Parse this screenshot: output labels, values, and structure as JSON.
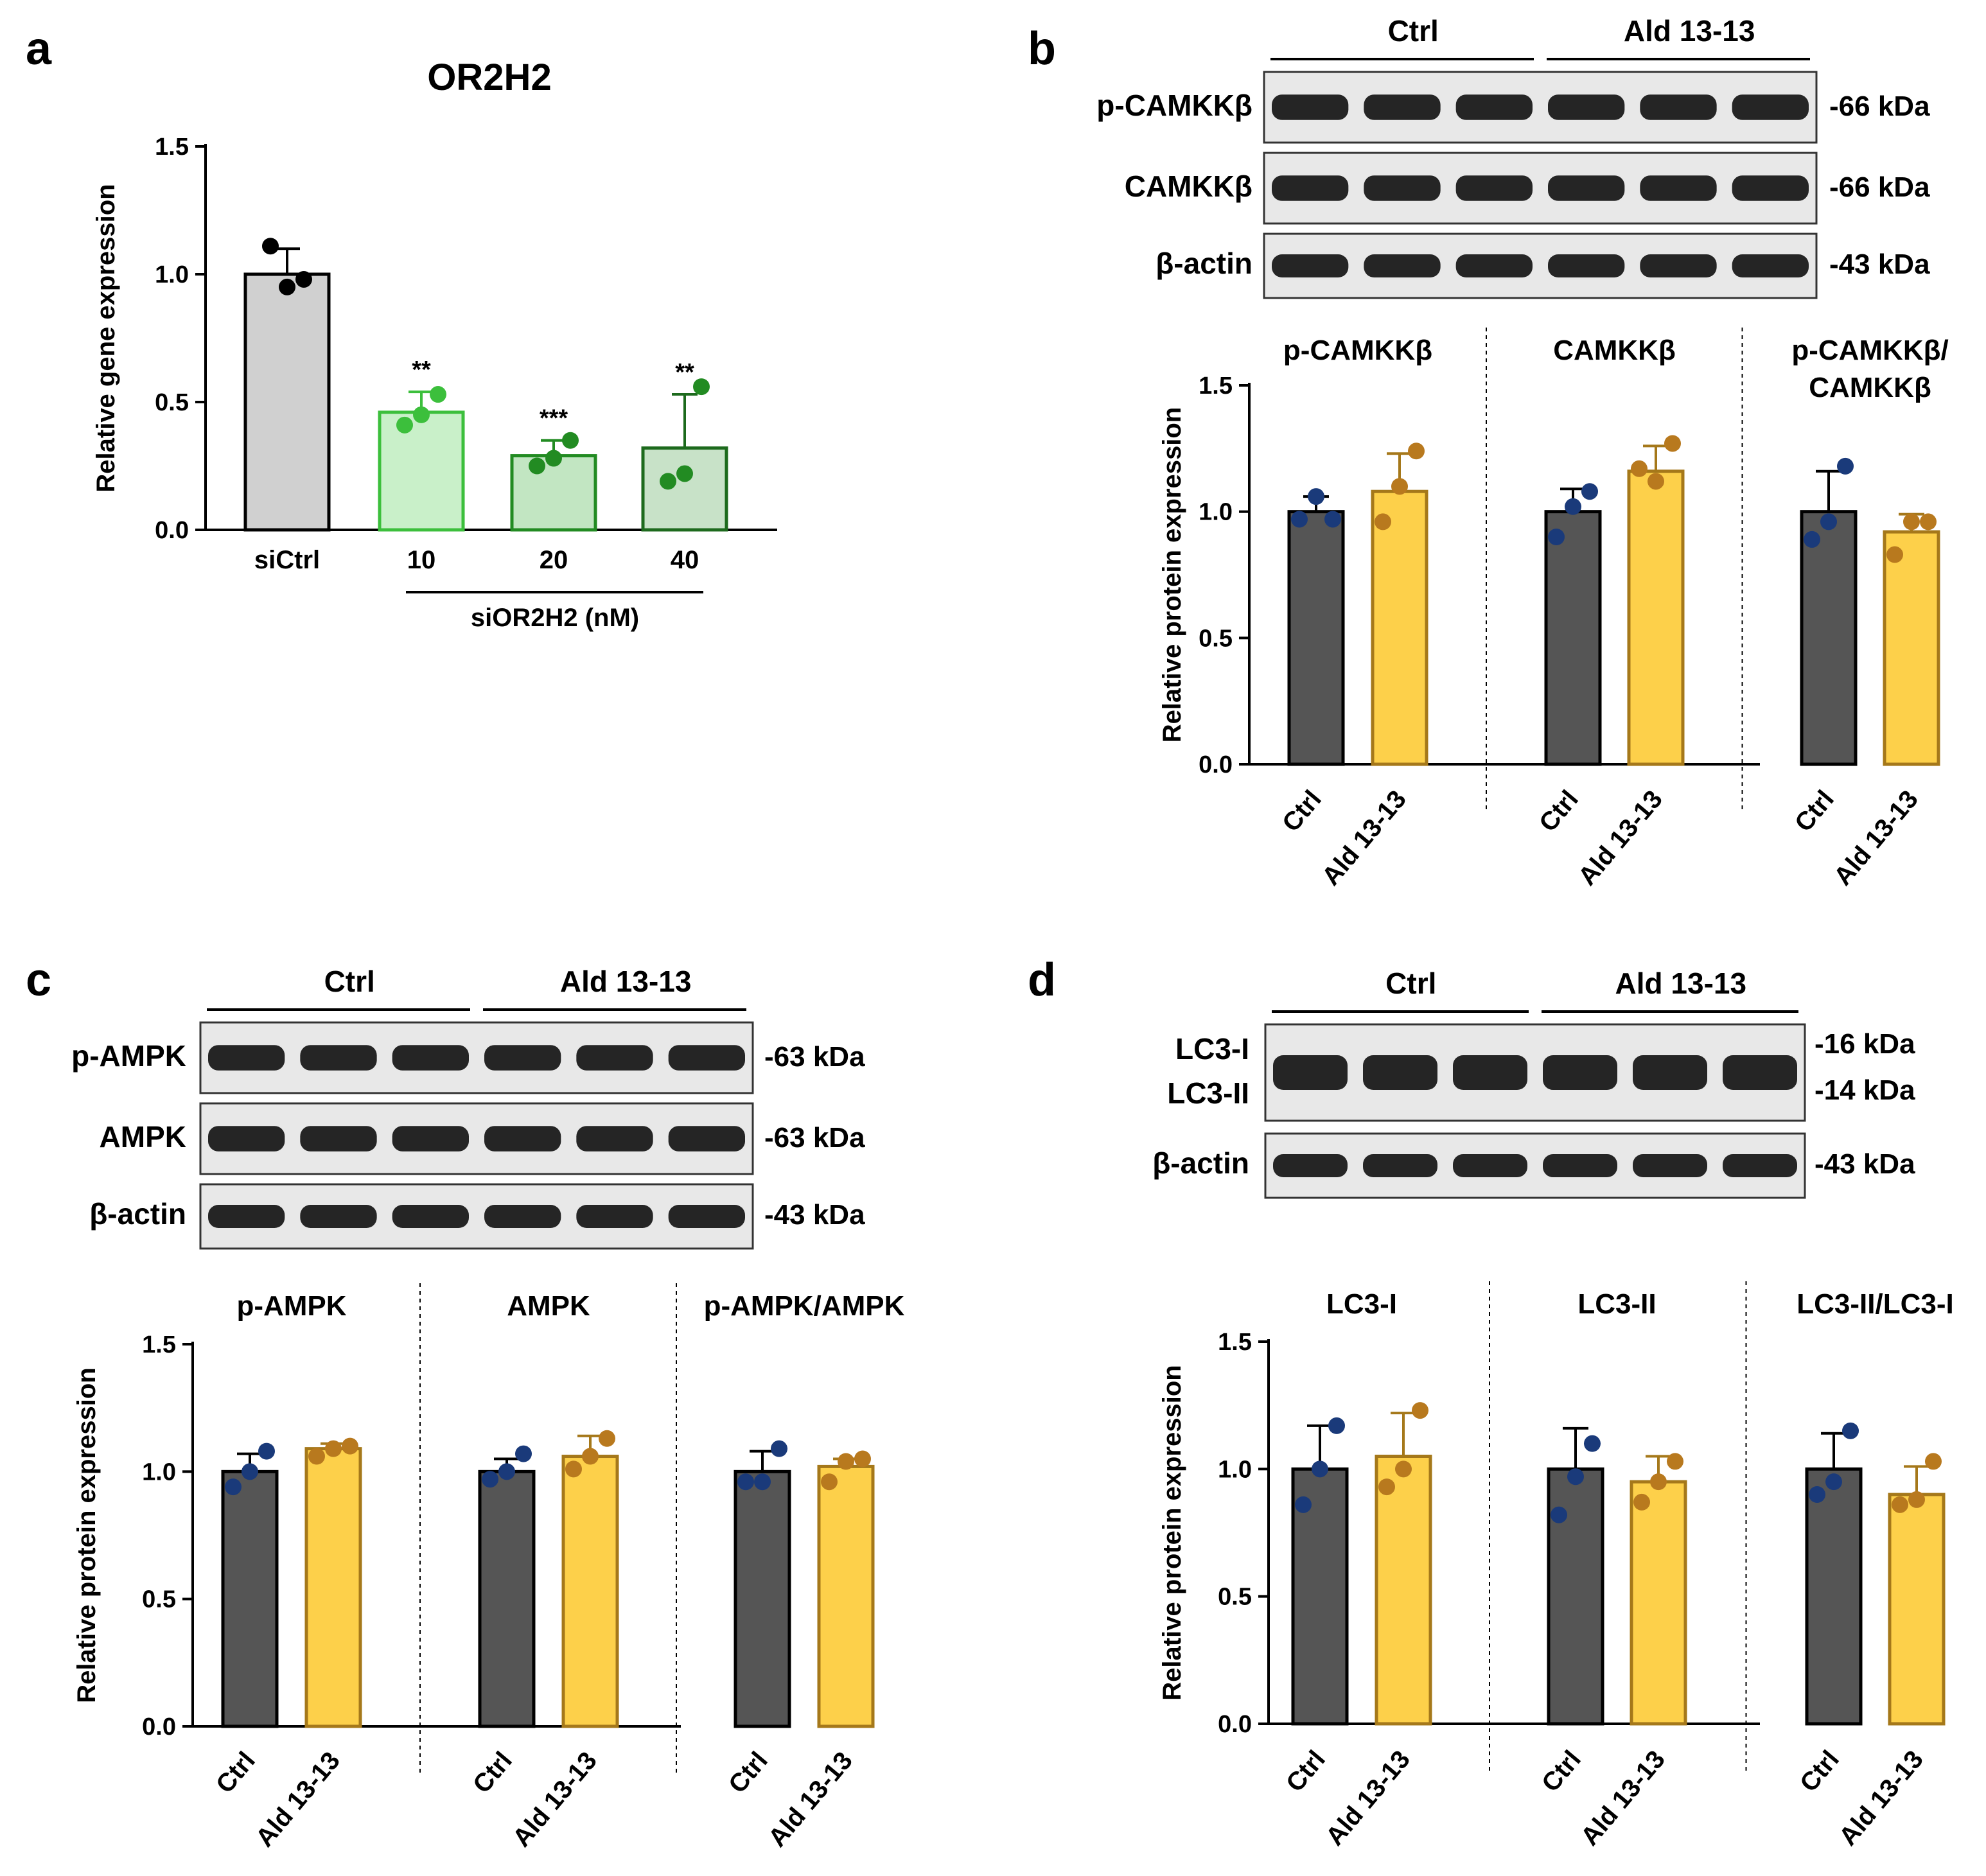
{
  "colors": {
    "ctrl": "#555555",
    "ctrl_dot": "#1a3a7a",
    "ald": "#fdd04a",
    "ald_edge": "#a5781a",
    "ald_dot": "#b8791e",
    "siCtrl": "#d0d0d0",
    "si10": "#c9f0c9",
    "si20": "#c2e6c2",
    "si40": "#c8e2c8",
    "e10": "#3cbf3c",
    "e20": "#228b22",
    "e40": "#1d6a1d"
  },
  "lanes": {
    "ctrl": "Ctrl",
    "ald": "Ald 13-13"
  },
  "chart_data": [
    {
      "panel": "a",
      "type": "bar",
      "title": "OR2H2",
      "ylabel": "Relative gene expression",
      "ylim": [
        0,
        1.5
      ],
      "yticks": [
        "0.0",
        "0.5",
        "1.0",
        "1.5"
      ],
      "categories": [
        "siCtrl",
        "10",
        "20",
        "40"
      ],
      "values": [
        1.0,
        0.46,
        0.29,
        0.32
      ],
      "err": [
        0.1,
        0.08,
        0.06,
        0.21
      ],
      "points": [
        [
          1.11,
          0.95,
          0.98
        ],
        [
          0.41,
          0.45,
          0.53
        ],
        [
          0.25,
          0.28,
          0.35
        ],
        [
          0.19,
          0.22,
          0.56
        ]
      ],
      "sig": [
        "",
        "**",
        "***",
        "**"
      ],
      "group_label": "siOR2H2 (nM)"
    },
    {
      "panel": "b",
      "type": "bar",
      "ylabel": "Relative protein expression",
      "ylim": [
        0,
        1.5
      ],
      "yticks": [
        "0.0",
        "0.5",
        "1.0",
        "1.5"
      ],
      "groups": [
        {
          "title": [
            "p-CAMKKβ"
          ],
          "values": [
            1.0,
            1.08
          ],
          "err": [
            0.06,
            0.15
          ],
          "points": [
            [
              0.97,
              1.06,
              0.97
            ],
            [
              0.96,
              1.1,
              1.24
            ]
          ]
        },
        {
          "title": [
            "CAMKKβ"
          ],
          "values": [
            1.0,
            1.16
          ],
          "err": [
            0.09,
            0.1
          ],
          "points": [
            [
              0.9,
              1.02,
              1.08
            ],
            [
              1.17,
              1.12,
              1.27
            ]
          ]
        },
        {
          "title": [
            "p-CAMKKβ/",
            "CAMKKβ"
          ],
          "values": [
            1.0,
            0.92
          ],
          "err": [
            0.16,
            0.07
          ],
          "points": [
            [
              0.89,
              0.96,
              1.18
            ],
            [
              0.83,
              0.96,
              0.96
            ]
          ]
        }
      ]
    },
    {
      "panel": "c",
      "type": "bar",
      "ylabel": "Relative protein expression",
      "ylim": [
        0,
        1.5
      ],
      "yticks": [
        "0.0",
        "0.5",
        "1.0",
        "1.5"
      ],
      "groups": [
        {
          "title": [
            "p-AMPK"
          ],
          "values": [
            1.0,
            1.09
          ],
          "err": [
            0.07,
            0.02
          ],
          "points": [
            [
              0.94,
              1.0,
              1.08
            ],
            [
              1.06,
              1.09,
              1.1
            ]
          ]
        },
        {
          "title": [
            "AMPK"
          ],
          "values": [
            1.0,
            1.06
          ],
          "err": [
            0.05,
            0.08
          ],
          "points": [
            [
              0.97,
              1.0,
              1.07
            ],
            [
              1.01,
              1.06,
              1.13
            ]
          ]
        },
        {
          "title": [
            "p-AMPK/AMPK"
          ],
          "values": [
            1.0,
            1.02
          ],
          "err": [
            0.08,
            0.03
          ],
          "points": [
            [
              0.96,
              0.96,
              1.09
            ],
            [
              0.96,
              1.04,
              1.05
            ]
          ]
        }
      ]
    },
    {
      "panel": "d",
      "type": "bar",
      "ylabel": "Relative protein expression",
      "ylim": [
        0,
        1.5
      ],
      "yticks": [
        "0.0",
        "0.5",
        "1.0",
        "1.5"
      ],
      "groups": [
        {
          "title": [
            "LC3-I"
          ],
          "values": [
            1.0,
            1.05
          ],
          "err": [
            0.17,
            0.17
          ],
          "points": [
            [
              0.86,
              1.0,
              1.17
            ],
            [
              0.93,
              1.0,
              1.23
            ]
          ]
        },
        {
          "title": [
            "LC3-II"
          ],
          "values": [
            1.0,
            0.95
          ],
          "err": [
            0.16,
            0.1
          ],
          "points": [
            [
              0.82,
              0.97,
              1.1
            ],
            [
              0.87,
              0.95,
              1.03
            ]
          ]
        },
        {
          "title": [
            "LC3-II/LC3-I"
          ],
          "values": [
            1.0,
            0.9
          ],
          "err": [
            0.14,
            0.11
          ],
          "points": [
            [
              0.9,
              0.95,
              1.15
            ],
            [
              0.86,
              0.88,
              1.03
            ]
          ]
        }
      ]
    }
  ],
  "blots": [
    {
      "panel": "b",
      "rows": [
        {
          "label": "p-CAMKKβ",
          "kda": "-66 kDa"
        },
        {
          "label": "CAMKKβ",
          "kda": "-66 kDa"
        },
        {
          "label": "β-actin",
          "kda": "-43 kDa"
        }
      ]
    },
    {
      "panel": "c",
      "rows": [
        {
          "label": "p-AMPK",
          "kda": "-63 kDa"
        },
        {
          "label": "AMPK",
          "kda": "-63 kDa"
        },
        {
          "label": "β-actin",
          "kda": "-43 kDa"
        }
      ]
    },
    {
      "panel": "d",
      "rows": [
        {
          "label": [
            "LC3-I",
            "LC3-II"
          ],
          "kda": [
            "-16 kDa",
            "-14 kDa"
          ]
        },
        {
          "label": "β-actin",
          "kda": "-43 kDa"
        }
      ]
    }
  ]
}
